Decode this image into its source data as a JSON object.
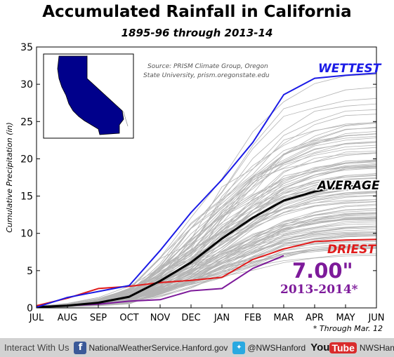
{
  "header": {
    "title": "Accumulated Rainfall in California",
    "subtitle": "1895-96 through 2013-14"
  },
  "chart_data": {
    "type": "line",
    "title": "Accumulated Rainfall in California",
    "subtitle": "1895-96 through 2013-14",
    "ylabel": "Cumulative Precipitation (in)",
    "xlabel": "",
    "categories": [
      "JUL",
      "AUG",
      "SEP",
      "OCT",
      "NOV",
      "DEC",
      "JAN",
      "FEB",
      "MAR",
      "APR",
      "MAY",
      "JUN"
    ],
    "ylim": [
      0,
      35
    ],
    "yticks": [
      0,
      5,
      10,
      15,
      20,
      25,
      30,
      35
    ],
    "grid": false,
    "source_note": "Source: PRISM Climate Group, Oregon State University, prism.oregonstate.edu",
    "footnote": "* Through Mar. 12",
    "series": [
      {
        "name": "WETTEST",
        "color": "#1a1ae6",
        "values": [
          0.1,
          1.4,
          2.2,
          3.0,
          7.7,
          12.8,
          17.2,
          22.2,
          28.6,
          30.8,
          31.2,
          31.5
        ]
      },
      {
        "name": "AVERAGE",
        "color": "#000000",
        "values": [
          0.1,
          0.3,
          0.7,
          1.5,
          3.6,
          6.1,
          9.3,
          12.1,
          14.4,
          15.6,
          16.3,
          16.5
        ]
      },
      {
        "name": "DRIEST",
        "color": "#e01a1a",
        "values": [
          0.3,
          1.3,
          2.6,
          2.9,
          3.4,
          3.7,
          4.1,
          6.5,
          7.9,
          8.9,
          9.1,
          9.2
        ]
      },
      {
        "name": "2013-2014*",
        "color": "#7d1a9a",
        "label_value": "7.00\"",
        "values": [
          0.1,
          0.3,
          0.5,
          0.9,
          1.1,
          2.3,
          2.6,
          5.3,
          7.0,
          null,
          null,
          null
        ]
      }
    ],
    "gray_series_color": "#b4b4b4",
    "inset_map": "California state map (blue fill)"
  },
  "footer": {
    "lead": "Interact With Us",
    "facebook_label": "NationalWeatherService.Hanford.gov",
    "twitter_label": "@NWSHanford",
    "youtube_you": "You",
    "youtube_tube": "Tube",
    "youtube_label": "NWSHanford",
    "facebook_icon": "facebook-icon",
    "twitter_icon": "twitter-icon",
    "youtube_icon": "youtube-icon"
  }
}
